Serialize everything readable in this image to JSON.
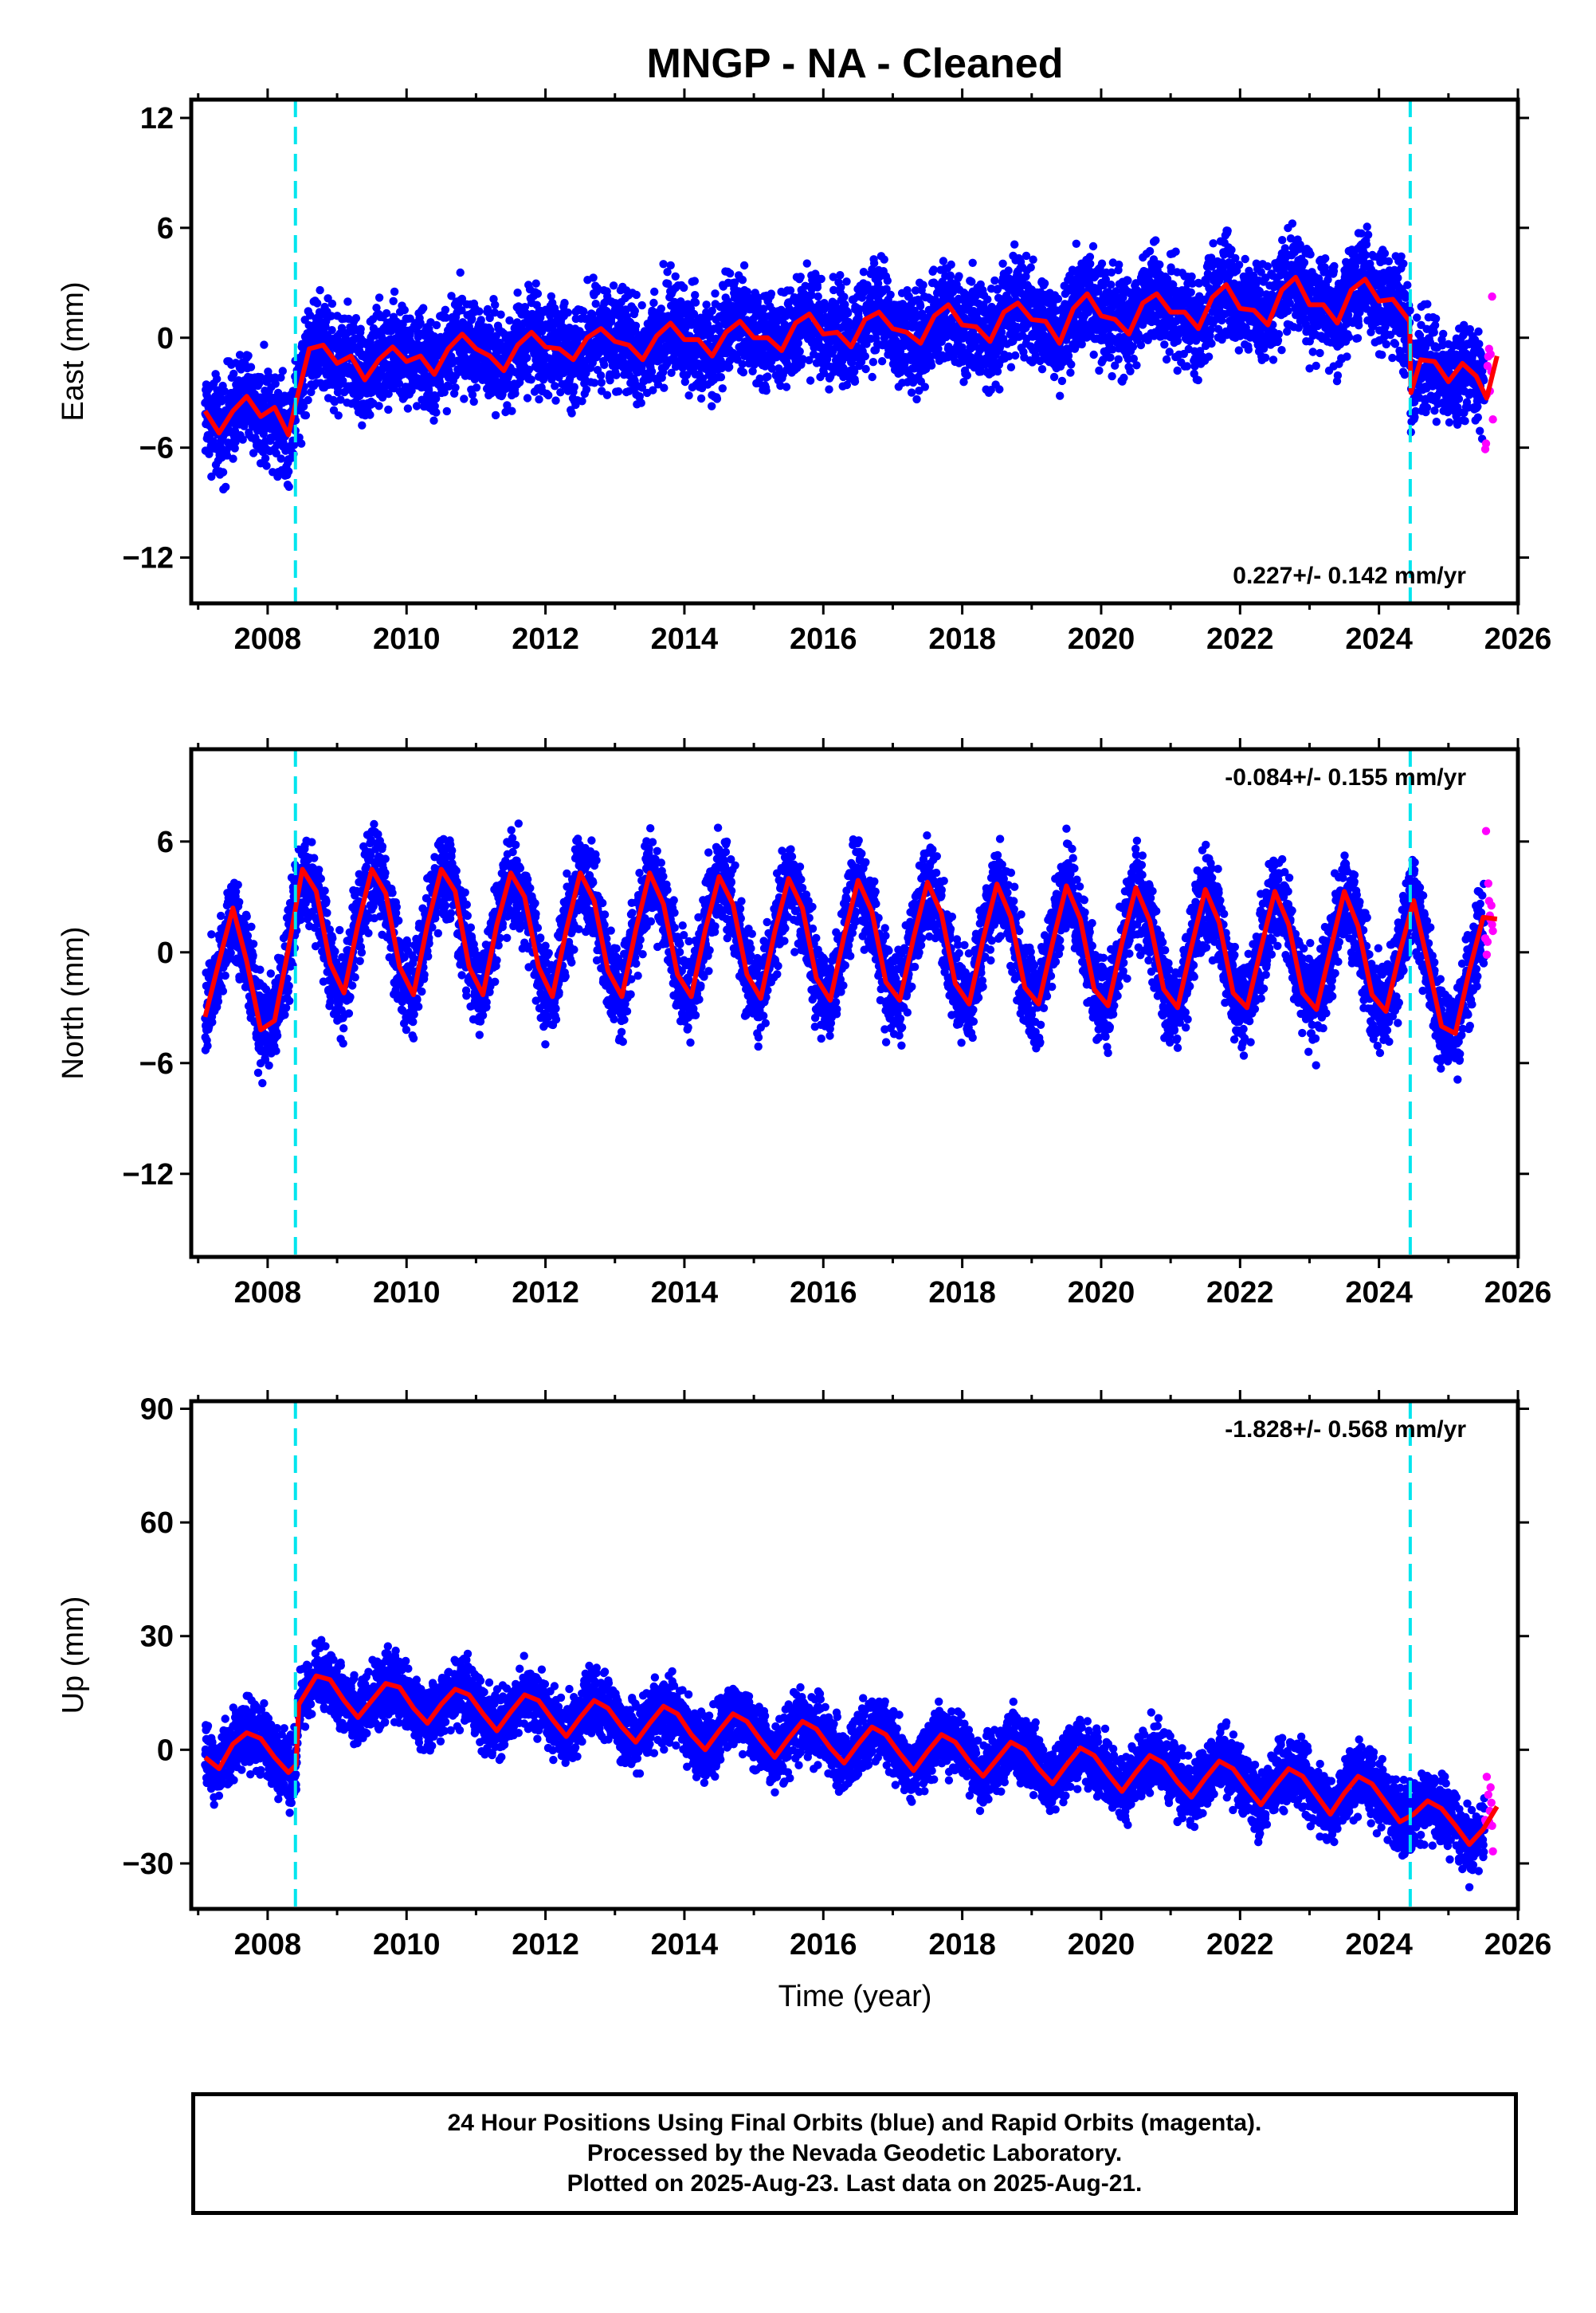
{
  "page": {
    "title": "MNGP  - NA - Cleaned",
    "xlabel": "Time (year)",
    "footer_lines": [
      "24 Hour Positions Using Final Orbits (blue) and Rapid Orbits (magenta).",
      "Processed by the Nevada Geodetic Laboratory.",
      "Plotted on 2025-Aug-23. Last data on 2025-Aug-21."
    ]
  },
  "colors": {
    "final_orbits": "#0000ff",
    "rapid_orbits": "#ff00ff",
    "model_fit": "#ff0000",
    "break_lines": "#00e5ee",
    "frame": "#000000"
  },
  "chart_data": [
    {
      "type": "scatter",
      "component": "east",
      "ylabel": "East (mm)",
      "rate_label": "0.227+/- 0.142 mm/yr",
      "rate_position": "bottom-right",
      "xlim": [
        2006.9,
        2026.0
      ],
      "ylim": [
        -14.5,
        13.0
      ],
      "xticks": [
        2008,
        2010,
        2012,
        2014,
        2016,
        2018,
        2020,
        2022,
        2024,
        2026
      ],
      "yticks": [
        -12,
        -6,
        0,
        6,
        12
      ],
      "ytick_labels": [
        "−12",
        "−6",
        "0",
        "6",
        "12"
      ],
      "breaks": [
        2008.4,
        2024.45
      ],
      "fit_points": [
        [
          2007.1,
          -4.0
        ],
        [
          2007.3,
          -5.2
        ],
        [
          2007.5,
          -4.0
        ],
        [
          2007.7,
          -3.2
        ],
        [
          2007.9,
          -4.3
        ],
        [
          2008.1,
          -3.8
        ],
        [
          2008.3,
          -5.3
        ],
        [
          2008.41,
          -3.5
        ],
        [
          2008.6,
          -0.6
        ],
        [
          2008.8,
          -0.4
        ],
        [
          2009.0,
          -1.4
        ],
        [
          2009.2,
          -1.0
        ],
        [
          2009.4,
          -2.3
        ],
        [
          2009.6,
          -1.2
        ],
        [
          2009.8,
          -0.5
        ],
        [
          2010.0,
          -1.3
        ],
        [
          2010.2,
          -1.0
        ],
        [
          2010.4,
          -2.0
        ],
        [
          2010.6,
          -0.6
        ],
        [
          2010.8,
          0.2
        ],
        [
          2011.0,
          -0.6
        ],
        [
          2011.2,
          -1.0
        ],
        [
          2011.4,
          -1.8
        ],
        [
          2011.6,
          -0.4
        ],
        [
          2011.8,
          0.3
        ],
        [
          2012.0,
          -0.5
        ],
        [
          2012.2,
          -0.6
        ],
        [
          2012.4,
          -1.2
        ],
        [
          2012.6,
          0.0
        ],
        [
          2012.8,
          0.5
        ],
        [
          2013.0,
          -0.2
        ],
        [
          2013.2,
          -0.4
        ],
        [
          2013.4,
          -1.2
        ],
        [
          2013.6,
          0.1
        ],
        [
          2013.8,
          0.8
        ],
        [
          2014.0,
          -0.1
        ],
        [
          2014.2,
          -0.1
        ],
        [
          2014.4,
          -1.0
        ],
        [
          2014.6,
          0.3
        ],
        [
          2014.8,
          0.9
        ],
        [
          2015.0,
          0.0
        ],
        [
          2015.2,
          0.0
        ],
        [
          2015.4,
          -0.7
        ],
        [
          2015.6,
          0.8
        ],
        [
          2015.8,
          1.3
        ],
        [
          2016.0,
          0.2
        ],
        [
          2016.2,
          0.3
        ],
        [
          2016.4,
          -0.5
        ],
        [
          2016.6,
          1.0
        ],
        [
          2016.8,
          1.4
        ],
        [
          2017.0,
          0.5
        ],
        [
          2017.2,
          0.3
        ],
        [
          2017.4,
          -0.3
        ],
        [
          2017.6,
          1.2
        ],
        [
          2017.8,
          1.8
        ],
        [
          2018.0,
          0.7
        ],
        [
          2018.2,
          0.6
        ],
        [
          2018.4,
          -0.2
        ],
        [
          2018.6,
          1.4
        ],
        [
          2018.8,
          1.9
        ],
        [
          2019.0,
          1.0
        ],
        [
          2019.2,
          0.9
        ],
        [
          2019.4,
          -0.3
        ],
        [
          2019.6,
          1.6
        ],
        [
          2019.8,
          2.4
        ],
        [
          2020.0,
          1.2
        ],
        [
          2020.2,
          1.0
        ],
        [
          2020.4,
          0.2
        ],
        [
          2020.6,
          1.9
        ],
        [
          2020.8,
          2.4
        ],
        [
          2021.0,
          1.4
        ],
        [
          2021.2,
          1.4
        ],
        [
          2021.4,
          0.5
        ],
        [
          2021.6,
          2.2
        ],
        [
          2021.8,
          2.9
        ],
        [
          2022.0,
          1.6
        ],
        [
          2022.2,
          1.5
        ],
        [
          2022.4,
          0.7
        ],
        [
          2022.6,
          2.6
        ],
        [
          2022.8,
          3.3
        ],
        [
          2023.0,
          1.8
        ],
        [
          2023.2,
          1.8
        ],
        [
          2023.4,
          0.8
        ],
        [
          2023.6,
          2.6
        ],
        [
          2023.8,
          3.2
        ],
        [
          2024.0,
          2.0
        ],
        [
          2024.2,
          2.1
        ],
        [
          2024.44,
          0.9
        ],
        [
          2024.46,
          -3.0
        ],
        [
          2024.6,
          -1.2
        ],
        [
          2024.8,
          -1.3
        ],
        [
          2025.0,
          -2.4
        ],
        [
          2025.2,
          -1.4
        ],
        [
          2025.4,
          -2.1
        ],
        [
          2025.55,
          -3.3
        ],
        [
          2025.7,
          -1.0
        ]
      ],
      "scatter": {
        "base_curve": "fit_points",
        "noise_mm": 1.3,
        "first_year": 2007.1,
        "last_final_year": 2025.52,
        "rapid_start_year": 2025.53,
        "last_year": 2025.64
      }
    },
    {
      "type": "scatter",
      "component": "north",
      "ylabel": "North (mm)",
      "rate_label": "-0.084+/- 0.155 mm/yr",
      "rate_position": "top-right",
      "xlim": [
        2006.9,
        2026.0
      ],
      "ylim": [
        -16.5,
        11.0
      ],
      "xticks": [
        2008,
        2010,
        2012,
        2014,
        2016,
        2018,
        2020,
        2022,
        2024,
        2026
      ],
      "yticks": [
        -12,
        -6,
        0,
        6
      ],
      "ytick_labels": [
        "−12",
        "−6",
        "0",
        "6"
      ],
      "breaks": [
        2008.4,
        2024.45
      ],
      "fit_points": [
        [
          2007.1,
          -3.5
        ],
        [
          2007.3,
          -0.5
        ],
        [
          2007.5,
          2.4
        ],
        [
          2007.7,
          -0.5
        ],
        [
          2007.9,
          -4.2
        ],
        [
          2008.1,
          -3.7
        ],
        [
          2008.3,
          0.2
        ],
        [
          2008.5,
          4.5
        ],
        [
          2008.7,
          3.3
        ],
        [
          2008.9,
          -0.6
        ],
        [
          2009.1,
          -2.2
        ],
        [
          2009.3,
          1.5
        ],
        [
          2009.5,
          4.5
        ],
        [
          2009.7,
          3.2
        ],
        [
          2009.9,
          -0.8
        ],
        [
          2010.1,
          -2.3
        ],
        [
          2010.3,
          1.5
        ],
        [
          2010.5,
          4.5
        ],
        [
          2010.7,
          3.3
        ],
        [
          2010.9,
          -0.8
        ],
        [
          2011.1,
          -2.3
        ],
        [
          2011.3,
          1.5
        ],
        [
          2011.5,
          4.3
        ],
        [
          2011.7,
          3.0
        ],
        [
          2011.9,
          -0.8
        ],
        [
          2012.1,
          -2.4
        ],
        [
          2012.3,
          1.2
        ],
        [
          2012.5,
          4.3
        ],
        [
          2012.7,
          2.8
        ],
        [
          2012.9,
          -1.0
        ],
        [
          2013.1,
          -2.4
        ],
        [
          2013.3,
          1.2
        ],
        [
          2013.5,
          4.3
        ],
        [
          2013.7,
          2.6
        ],
        [
          2013.9,
          -1.2
        ],
        [
          2014.1,
          -2.4
        ],
        [
          2014.3,
          1.2
        ],
        [
          2014.5,
          4.1
        ],
        [
          2014.7,
          2.6
        ],
        [
          2014.9,
          -1.2
        ],
        [
          2015.1,
          -2.5
        ],
        [
          2015.3,
          1.1
        ],
        [
          2015.5,
          4.0
        ],
        [
          2015.7,
          2.4
        ],
        [
          2015.9,
          -1.4
        ],
        [
          2016.1,
          -2.6
        ],
        [
          2016.3,
          0.9
        ],
        [
          2016.5,
          3.9
        ],
        [
          2016.7,
          2.2
        ],
        [
          2016.9,
          -1.6
        ],
        [
          2017.1,
          -2.6
        ],
        [
          2017.3,
          0.8
        ],
        [
          2017.5,
          3.8
        ],
        [
          2017.7,
          2.1
        ],
        [
          2017.9,
          -1.7
        ],
        [
          2018.1,
          -2.8
        ],
        [
          2018.3,
          0.7
        ],
        [
          2018.5,
          3.7
        ],
        [
          2018.7,
          1.9
        ],
        [
          2018.9,
          -1.9
        ],
        [
          2019.1,
          -2.8
        ],
        [
          2019.3,
          0.5
        ],
        [
          2019.5,
          3.6
        ],
        [
          2019.7,
          1.8
        ],
        [
          2019.9,
          -2.0
        ],
        [
          2020.1,
          -2.9
        ],
        [
          2020.3,
          0.5
        ],
        [
          2020.5,
          3.5
        ],
        [
          2020.7,
          1.7
        ],
        [
          2020.9,
          -2.0
        ],
        [
          2021.1,
          -3.0
        ],
        [
          2021.3,
          0.3
        ],
        [
          2021.5,
          3.4
        ],
        [
          2021.7,
          1.6
        ],
        [
          2021.9,
          -2.2
        ],
        [
          2022.1,
          -3.0
        ],
        [
          2022.3,
          0.2
        ],
        [
          2022.5,
          3.3
        ],
        [
          2022.7,
          1.5
        ],
        [
          2022.9,
          -2.2
        ],
        [
          2023.1,
          -3.1
        ],
        [
          2023.3,
          0.1
        ],
        [
          2023.5,
          3.3
        ],
        [
          2023.7,
          1.4
        ],
        [
          2023.9,
          -2.3
        ],
        [
          2024.1,
          -3.2
        ],
        [
          2024.3,
          0.0
        ],
        [
          2024.5,
          2.8
        ],
        [
          2024.7,
          -0.5
        ],
        [
          2024.9,
          -4.0
        ],
        [
          2025.1,
          -4.4
        ],
        [
          2025.3,
          -1.0
        ],
        [
          2025.5,
          1.9
        ],
        [
          2025.7,
          1.8
        ]
      ],
      "scatter": {
        "base_curve": "fit_points",
        "noise_mm": 1.2,
        "first_year": 2007.1,
        "last_final_year": 2025.52,
        "rapid_start_year": 2025.53,
        "last_year": 2025.64
      }
    },
    {
      "type": "scatter",
      "component": "up",
      "ylabel": "Up (mm)",
      "rate_label": "-1.828+/- 0.568 mm/yr",
      "rate_position": "top-right",
      "xlim": [
        2006.9,
        2026.0
      ],
      "ylim": [
        -42.0,
        92.0
      ],
      "xticks": [
        2008,
        2010,
        2012,
        2014,
        2016,
        2018,
        2020,
        2022,
        2024,
        2026
      ],
      "yticks": [
        -30,
        0,
        30,
        60,
        90
      ],
      "ytick_labels": [
        "−30",
        "0",
        "30",
        "60",
        "90"
      ],
      "breaks": [
        2008.4,
        2024.45
      ],
      "fit_points": [
        [
          2007.1,
          -2.0
        ],
        [
          2007.3,
          -5.0
        ],
        [
          2007.5,
          1.5
        ],
        [
          2007.7,
          4.5
        ],
        [
          2007.9,
          3.0
        ],
        [
          2008.1,
          -2.0
        ],
        [
          2008.3,
          -6.0
        ],
        [
          2008.41,
          -4.0
        ],
        [
          2008.45,
          12.0
        ],
        [
          2008.7,
          19.5
        ],
        [
          2008.9,
          18.5
        ],
        [
          2009.1,
          13.0
        ],
        [
          2009.3,
          8.5
        ],
        [
          2009.5,
          13.0
        ],
        [
          2009.7,
          17.5
        ],
        [
          2009.9,
          16.5
        ],
        [
          2010.1,
          11.0
        ],
        [
          2010.3,
          7.0
        ],
        [
          2010.5,
          12.0
        ],
        [
          2010.7,
          16.0
        ],
        [
          2010.9,
          14.5
        ],
        [
          2011.1,
          9.5
        ],
        [
          2011.3,
          5.0
        ],
        [
          2011.5,
          10.0
        ],
        [
          2011.7,
          14.5
        ],
        [
          2011.9,
          13.0
        ],
        [
          2012.1,
          8.0
        ],
        [
          2012.3,
          3.5
        ],
        [
          2012.5,
          8.5
        ],
        [
          2012.7,
          13.0
        ],
        [
          2012.9,
          11.0
        ],
        [
          2013.1,
          6.0
        ],
        [
          2013.3,
          2.0
        ],
        [
          2013.5,
          7.0
        ],
        [
          2013.7,
          11.5
        ],
        [
          2013.9,
          9.5
        ],
        [
          2014.1,
          4.0
        ],
        [
          2014.3,
          0.0
        ],
        [
          2014.5,
          5.0
        ],
        [
          2014.7,
          9.5
        ],
        [
          2014.9,
          7.5
        ],
        [
          2015.1,
          2.5
        ],
        [
          2015.3,
          -2.0
        ],
        [
          2015.5,
          3.0
        ],
        [
          2015.7,
          7.5
        ],
        [
          2015.9,
          5.5
        ],
        [
          2016.1,
          0.5
        ],
        [
          2016.3,
          -3.5
        ],
        [
          2016.5,
          1.5
        ],
        [
          2016.7,
          6.0
        ],
        [
          2016.9,
          4.0
        ],
        [
          2017.1,
          -1.0
        ],
        [
          2017.3,
          -5.5
        ],
        [
          2017.5,
          -0.5
        ],
        [
          2017.7,
          4.0
        ],
        [
          2017.9,
          2.0
        ],
        [
          2018.1,
          -3.0
        ],
        [
          2018.3,
          -7.0
        ],
        [
          2018.5,
          -2.5
        ],
        [
          2018.7,
          2.0
        ],
        [
          2018.9,
          0.0
        ],
        [
          2019.1,
          -5.0
        ],
        [
          2019.3,
          -9.0
        ],
        [
          2019.5,
          -4.0
        ],
        [
          2019.7,
          0.5
        ],
        [
          2019.9,
          -1.5
        ],
        [
          2020.1,
          -6.5
        ],
        [
          2020.3,
          -11.0
        ],
        [
          2020.5,
          -6.0
        ],
        [
          2020.7,
          -1.5
        ],
        [
          2020.9,
          -3.5
        ],
        [
          2021.1,
          -8.5
        ],
        [
          2021.3,
          -12.5
        ],
        [
          2021.5,
          -7.5
        ],
        [
          2021.7,
          -3.0
        ],
        [
          2021.9,
          -5.0
        ],
        [
          2022.1,
          -10.0
        ],
        [
          2022.3,
          -14.5
        ],
        [
          2022.5,
          -9.5
        ],
        [
          2022.7,
          -5.0
        ],
        [
          2022.9,
          -7.0
        ],
        [
          2023.1,
          -12.0
        ],
        [
          2023.3,
          -17.0
        ],
        [
          2023.5,
          -11.5
        ],
        [
          2023.7,
          -7.0
        ],
        [
          2023.9,
          -9.0
        ],
        [
          2024.1,
          -14.0
        ],
        [
          2024.3,
          -19.0
        ],
        [
          2024.5,
          -17.0
        ],
        [
          2024.7,
          -13.5
        ],
        [
          2024.9,
          -15.5
        ],
        [
          2025.1,
          -20.0
        ],
        [
          2025.3,
          -25.0
        ],
        [
          2025.5,
          -21.0
        ],
        [
          2025.7,
          -15.0
        ]
      ],
      "scatter": {
        "base_curve": "fit_points",
        "noise_mm": 4.2,
        "first_year": 2007.1,
        "last_final_year": 2025.52,
        "rapid_start_year": 2025.53,
        "last_year": 2025.64
      }
    }
  ]
}
